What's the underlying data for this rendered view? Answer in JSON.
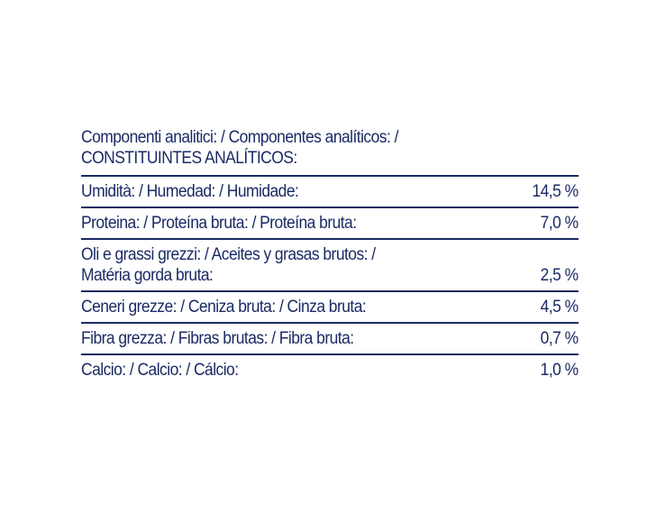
{
  "heading": {
    "line1": "Componenti analitici: / Componentes analíticos: /",
    "line2": "CONSTITUINTES ANALÍTICOS:"
  },
  "rows": [
    {
      "label": "Umidità: / Humedad: / Humidade:",
      "value": "14,5 %"
    },
    {
      "label": "Proteina: / Proteína bruta: / Proteína bruta:",
      "value": "7,0 %"
    },
    {
      "label_line1": "Oli e grassi grezzi: / Aceites y grasas brutos: /",
      "label_line2": "Matéria gorda bruta:",
      "value": "2,5 %"
    },
    {
      "label": "Ceneri grezze: / Ceniza bruta: / Cinza bruta:",
      "value": "4,5 %"
    },
    {
      "label": "Fibra grezza: / Fibras brutas: / Fibra bruta:",
      "value": "0,7 %"
    },
    {
      "label": "Calcio: / Calcio: / Cálcio:",
      "value": "1,0 %"
    }
  ],
  "colors": {
    "text": "#1b2a64",
    "rule": "#1b2a64",
    "background": "#ffffff"
  }
}
